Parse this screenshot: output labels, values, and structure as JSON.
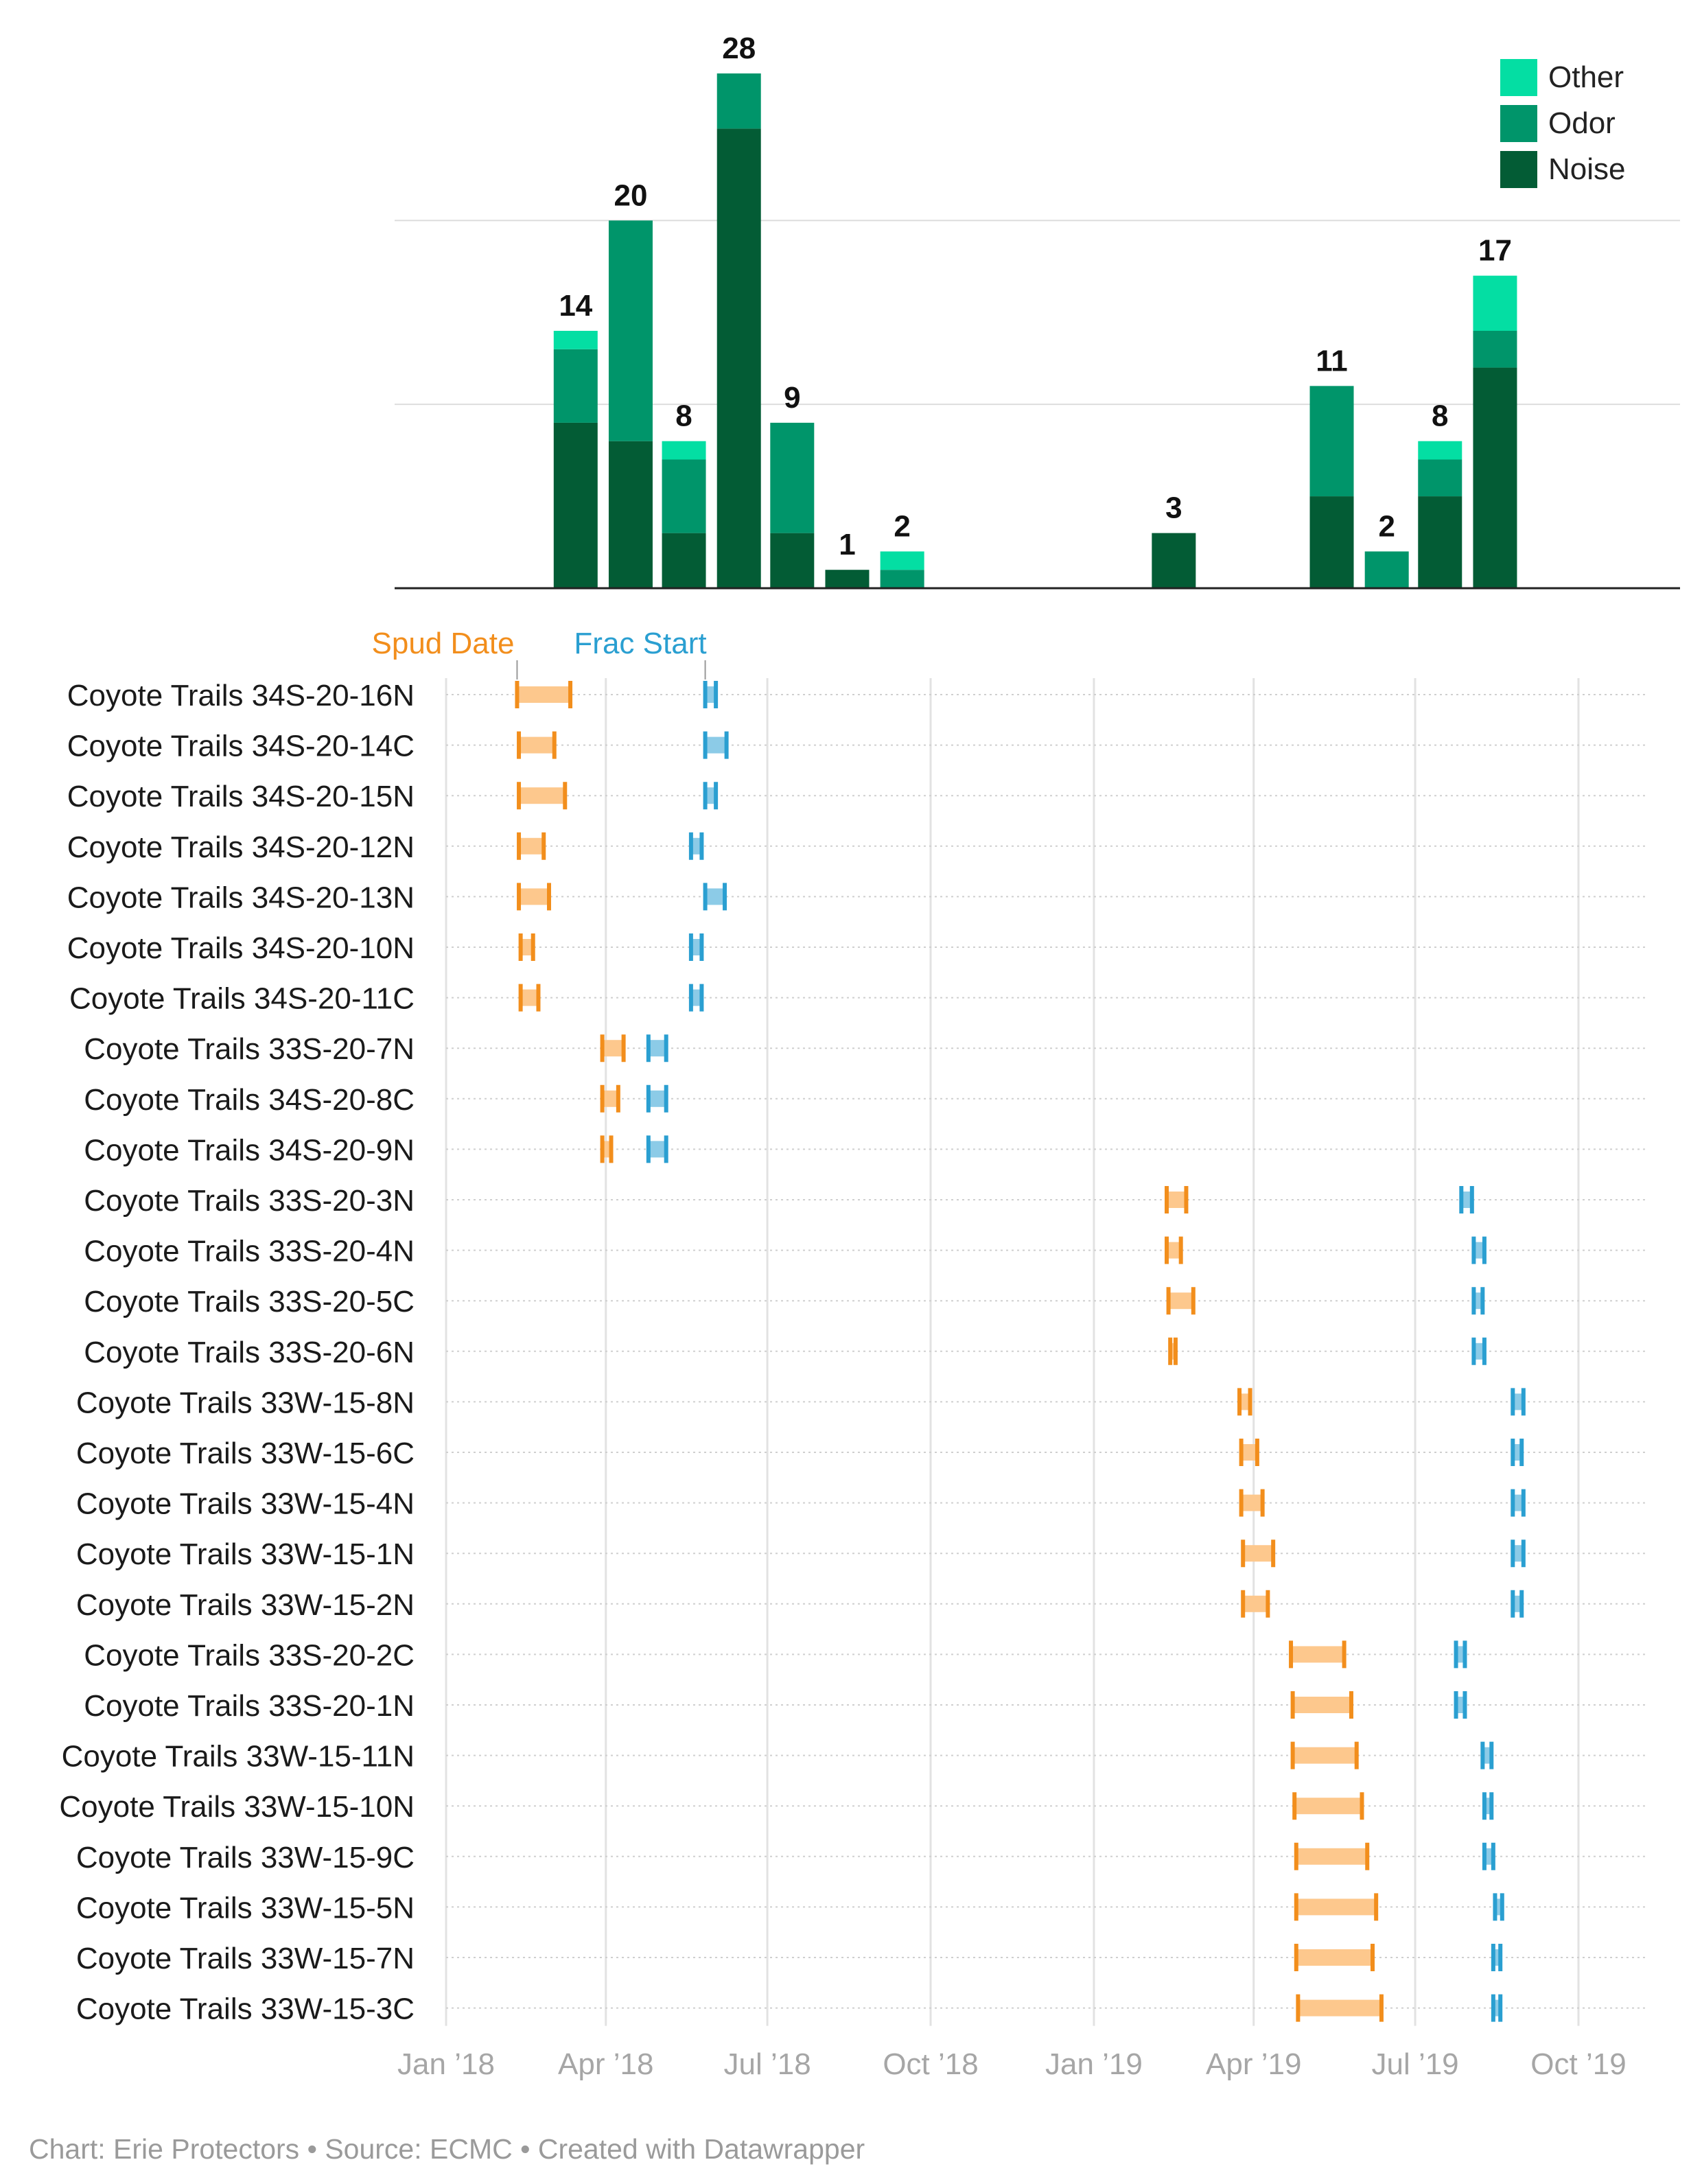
{
  "chart_data": [
    {
      "type": "bar",
      "stacked": true,
      "x_unit": "month",
      "months": [
        "2018-03",
        "2018-04",
        "2018-05",
        "2018-06",
        "2018-07",
        "2018-08",
        "2018-09",
        "2018-10",
        "2018-11",
        "2018-12",
        "2019-01",
        "2019-02",
        "2019-03",
        "2019-04",
        "2019-05",
        "2019-06",
        "2019-07",
        "2019-08"
      ],
      "series": [
        {
          "name": "Noise",
          "color": "#035c35",
          "values": [
            9,
            8,
            3,
            25,
            3,
            1,
            0,
            0,
            0,
            0,
            0,
            3,
            0,
            0,
            5,
            0,
            5,
            12
          ]
        },
        {
          "name": "Odor",
          "color": "#00956a",
          "values": [
            4,
            12,
            4,
            3,
            6,
            0,
            1,
            0,
            0,
            0,
            0,
            0,
            0,
            0,
            6,
            2,
            2,
            2
          ]
        },
        {
          "name": "Other",
          "color": "#04dea3",
          "values": [
            1,
            0,
            1,
            0,
            0,
            0,
            1,
            0,
            0,
            0,
            0,
            0,
            0,
            0,
            0,
            0,
            1,
            3
          ]
        }
      ],
      "totals": [
        14,
        20,
        8,
        28,
        9,
        1,
        2,
        0,
        0,
        0,
        0,
        3,
        0,
        0,
        11,
        2,
        8,
        17
      ],
      "legend": [
        "Other",
        "Odor",
        "Noise"
      ],
      "legend_position": "top-right",
      "ylim": [
        0,
        28
      ],
      "gridlines_at": [
        10,
        20
      ]
    },
    {
      "type": "range",
      "legend": {
        "spud": "Spud Date",
        "frac": "Frac Start"
      },
      "colors": {
        "spud": "#f28e1c",
        "spud_fill": "#fdc88d",
        "frac": "#2a9fd1",
        "frac_fill": "#8ccbe7"
      },
      "x_ticks": [
        "Jan ’18",
        "Apr ’18",
        "Jul ’18",
        "Oct ’18",
        "Jan ’19",
        "Apr ’19",
        "Jul ’19",
        "Oct ’19"
      ],
      "wells": [
        {
          "name": "Coyote Trails 34S-20-16N",
          "spud": [
            "2018-02-10",
            "2018-03-12"
          ],
          "frac": [
            "2018-05-27",
            "2018-06-02"
          ]
        },
        {
          "name": "Coyote Trails 34S-20-14C",
          "spud": [
            "2018-02-11",
            "2018-03-03"
          ],
          "frac": [
            "2018-05-27",
            "2018-06-08"
          ]
        },
        {
          "name": "Coyote Trails 34S-20-15N",
          "spud": [
            "2018-02-11",
            "2018-03-09"
          ],
          "frac": [
            "2018-05-27",
            "2018-06-02"
          ]
        },
        {
          "name": "Coyote Trails 34S-20-12N",
          "spud": [
            "2018-02-11",
            "2018-02-25"
          ],
          "frac": [
            "2018-05-19",
            "2018-05-25"
          ]
        },
        {
          "name": "Coyote Trails 34S-20-13N",
          "spud": [
            "2018-02-11",
            "2018-02-28"
          ],
          "frac": [
            "2018-05-27",
            "2018-06-07"
          ]
        },
        {
          "name": "Coyote Trails 34S-20-10N",
          "spud": [
            "2018-02-12",
            "2018-02-19"
          ],
          "frac": [
            "2018-05-19",
            "2018-05-25"
          ]
        },
        {
          "name": "Coyote Trails 34S-20-11C",
          "spud": [
            "2018-02-12",
            "2018-02-22"
          ],
          "frac": [
            "2018-05-19",
            "2018-05-25"
          ]
        },
        {
          "name": "Coyote Trails 33S-20-7N",
          "spud": [
            "2018-03-30",
            "2018-04-11"
          ],
          "frac": [
            "2018-04-25",
            "2018-05-05"
          ]
        },
        {
          "name": "Coyote Trails 34S-20-8C",
          "spud": [
            "2018-03-30",
            "2018-04-08"
          ],
          "frac": [
            "2018-04-25",
            "2018-05-05"
          ]
        },
        {
          "name": "Coyote Trails 34S-20-9N",
          "spud": [
            "2018-03-30",
            "2018-04-04"
          ],
          "frac": [
            "2018-04-25",
            "2018-05-05"
          ]
        },
        {
          "name": "Coyote Trails 33S-20-3N",
          "spud": [
            "2019-02-11",
            "2019-02-22"
          ],
          "frac": [
            "2019-07-27",
            "2019-08-02"
          ]
        },
        {
          "name": "Coyote Trails 33S-20-4N",
          "spud": [
            "2019-02-11",
            "2019-02-19"
          ],
          "frac": [
            "2019-08-03",
            "2019-08-09"
          ]
        },
        {
          "name": "Coyote Trails 33S-20-5C",
          "spud": [
            "2019-02-12",
            "2019-02-26"
          ],
          "frac": [
            "2019-08-03",
            "2019-08-08"
          ]
        },
        {
          "name": "Coyote Trails 33S-20-6N",
          "spud": [
            "2019-02-13",
            "2019-02-16"
          ],
          "frac": [
            "2019-08-03",
            "2019-08-09"
          ]
        },
        {
          "name": "Coyote Trails 33W-15-8N",
          "spud": [
            "2019-03-24",
            "2019-03-30"
          ],
          "frac": [
            "2019-08-25",
            "2019-08-31"
          ]
        },
        {
          "name": "Coyote Trails 33W-15-6C",
          "spud": [
            "2019-03-25",
            "2019-04-03"
          ],
          "frac": [
            "2019-08-25",
            "2019-08-30"
          ]
        },
        {
          "name": "Coyote Trails 33W-15-4N",
          "spud": [
            "2019-03-25",
            "2019-04-06"
          ],
          "frac": [
            "2019-08-25",
            "2019-08-31"
          ]
        },
        {
          "name": "Coyote Trails 33W-15-1N",
          "spud": [
            "2019-03-26",
            "2019-04-12"
          ],
          "frac": [
            "2019-08-25",
            "2019-08-31"
          ]
        },
        {
          "name": "Coyote Trails 33W-15-2N",
          "spud": [
            "2019-03-26",
            "2019-04-09"
          ],
          "frac": [
            "2019-08-25",
            "2019-08-30"
          ]
        },
        {
          "name": "Coyote Trails 33S-20-2C",
          "spud": [
            "2019-04-22",
            "2019-05-22"
          ],
          "frac": [
            "2019-07-24",
            "2019-07-29"
          ]
        },
        {
          "name": "Coyote Trails 33S-20-1N",
          "spud": [
            "2019-04-23",
            "2019-05-26"
          ],
          "frac": [
            "2019-07-24",
            "2019-07-29"
          ]
        },
        {
          "name": "Coyote Trails 33W-15-11N",
          "spud": [
            "2019-04-23",
            "2019-05-29"
          ],
          "frac": [
            "2019-08-08",
            "2019-08-13"
          ]
        },
        {
          "name": "Coyote Trails 33W-15-10N",
          "spud": [
            "2019-04-24",
            "2019-06-01"
          ],
          "frac": [
            "2019-08-09",
            "2019-08-13"
          ]
        },
        {
          "name": "Coyote Trails 33W-15-9C",
          "spud": [
            "2019-04-25",
            "2019-06-04"
          ],
          "frac": [
            "2019-08-09",
            "2019-08-14"
          ]
        },
        {
          "name": "Coyote Trails 33W-15-5N",
          "spud": [
            "2019-04-25",
            "2019-06-09"
          ],
          "frac": [
            "2019-08-15",
            "2019-08-19"
          ]
        },
        {
          "name": "Coyote Trails 33W-15-7N",
          "spud": [
            "2019-04-25",
            "2019-06-07"
          ],
          "frac": [
            "2019-08-14",
            "2019-08-18"
          ]
        },
        {
          "name": "Coyote Trails 33W-15-3C",
          "spud": [
            "2019-04-26",
            "2019-06-12"
          ],
          "frac": [
            "2019-08-14",
            "2019-08-18"
          ]
        }
      ]
    }
  ],
  "footer": {
    "text": "Chart: Erie Protectors • Source: ECMC • Created with Datawrapper"
  }
}
